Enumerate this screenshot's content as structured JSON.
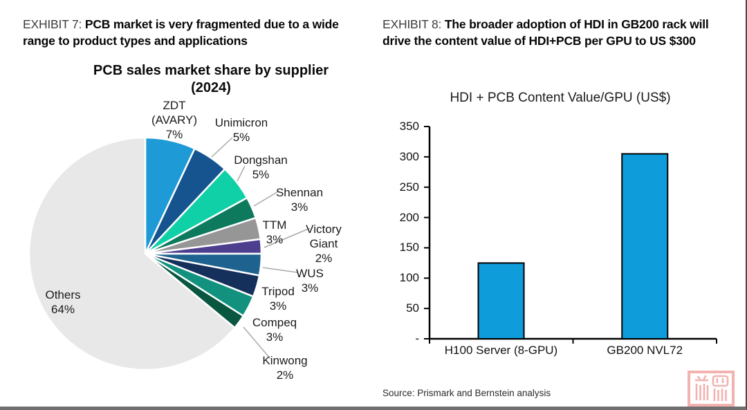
{
  "page": {
    "source_note": "Source: Prismark and Bernstein analysis",
    "watermark_color": "#F2B2B0"
  },
  "exhibit7": {
    "label": "EXHIBIT 7:",
    "title": "PCB market is very fragmented due to a wide range to product types and applications"
  },
  "exhibit8": {
    "label": "EXHIBIT 8:",
    "title": "The broader adoption of HDI in GB200 rack will drive the content value of HDI+PCB per GPU to US $300"
  },
  "chart_data": [
    {
      "type": "pie",
      "title": "PCB sales market share by supplier (2024)",
      "title_lines": [
        "PCB sales market share by supplier",
        "(2024)"
      ],
      "unit": "percent",
      "legend_position": "none",
      "labels_style": "outside-with-leader-lines",
      "start_position": "12-oclock-clockwise",
      "segments": [
        {
          "name": "ZDT (AVARY)",
          "value": 7,
          "color": "#1E9AD6"
        },
        {
          "name": "Unimicron",
          "value": 5,
          "color": "#15548F"
        },
        {
          "name": "Dongshan",
          "value": 5,
          "color": "#10D0A8"
        },
        {
          "name": "Shennan",
          "value": 3,
          "color": "#0D7A5E"
        },
        {
          "name": "TTM",
          "value": 3,
          "color": "#969696"
        },
        {
          "name": "Victory Giant",
          "value": 2,
          "color": "#4D3E8E"
        },
        {
          "name": "WUS",
          "value": 3,
          "color": "#1E6390"
        },
        {
          "name": "Tripod",
          "value": 3,
          "color": "#16305C"
        },
        {
          "name": "Compeq",
          "value": 3,
          "color": "#11917E"
        },
        {
          "name": "Kinwong",
          "value": 2,
          "color": "#0A5741"
        },
        {
          "name": "Others",
          "value": 64,
          "color": "#E8E8E8"
        }
      ]
    },
    {
      "type": "bar",
      "title": "HDI + PCB Content Value/GPU (US$)",
      "categories": [
        "H100 Server (8-GPU)",
        "GB200 NVL72"
      ],
      "values": [
        125,
        305
      ],
      "ylim": [
        0,
        350
      ],
      "ytick_step": 50,
      "ytick_labels": [
        "-",
        "50",
        "100",
        "150",
        "200",
        "250",
        "300",
        "350"
      ],
      "bar_color": "#0E9CDB",
      "bar_border_color": "#000000",
      "grid": false,
      "legend_position": "none"
    }
  ]
}
